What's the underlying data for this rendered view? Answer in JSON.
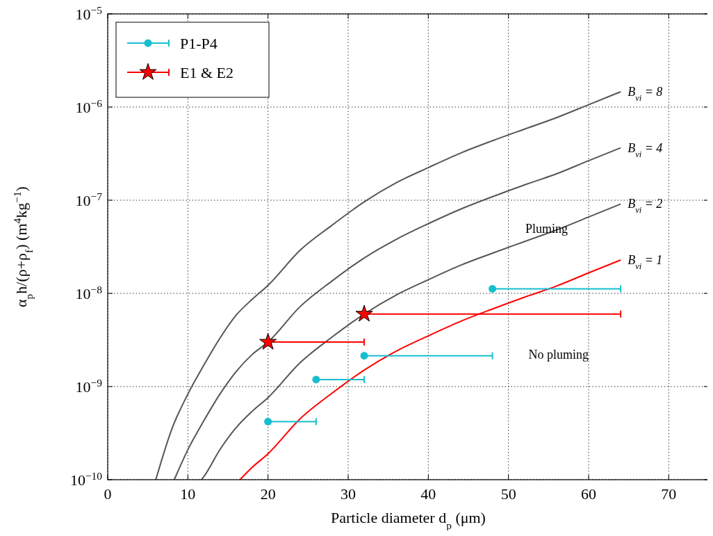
{
  "chart_data": {
    "type": "line",
    "xlabel": "Particle diameter d$_{p}$ (μm)",
    "ylabel": "α$_{p}$h/(ρ+ρ$_{f}$) (m$^{4}$kg$^{−1}$)",
    "xlim": [
      0,
      75
    ],
    "xticks": [
      0,
      10,
      20,
      30,
      40,
      50,
      60,
      70
    ],
    "ylim": [
      1e-10,
      1e-05
    ],
    "yticks": [
      {
        "value": 1e-10,
        "label": "10$^{−10}$"
      },
      {
        "value": 1e-09,
        "label": "10$^{−9}$"
      },
      {
        "value": 1e-08,
        "label": "10$^{−8}$"
      },
      {
        "value": 1e-07,
        "label": "10$^{−7}$"
      },
      {
        "value": 1e-06,
        "label": "10$^{−6}$"
      },
      {
        "value": 1e-05,
        "label": "10$^{−5}$"
      }
    ],
    "log": "y",
    "grid": true,
    "legend": "top left",
    "line_style": "solid",
    "series": [
      {
        "name": "B$_{vi}$ = 8",
        "color": "#555555",
        "x": [
          6,
          8,
          10,
          12,
          14,
          16,
          18,
          20,
          24,
          28,
          32,
          36,
          40,
          44,
          48,
          52,
          56,
          60,
          64
        ],
        "values": [
          1e-10,
          3.5e-10,
          8.3e-10,
          1.7e-09,
          3.3e-09,
          5.8e-09,
          8.6e-09,
          1.22e-08,
          2.9e-08,
          5.4e-08,
          9.6e-08,
          1.54e-07,
          2.24e-07,
          3.2e-07,
          4.35e-07,
          5.8e-07,
          7.7e-07,
          1.06e-06,
          1.46e-06
        ]
      },
      {
        "name": "B$_{vi}$ = 4",
        "color": "#555555",
        "x": [
          8.3,
          10,
          12,
          14,
          16,
          18,
          20,
          24,
          28,
          32,
          36,
          40,
          44,
          48,
          52,
          56,
          60,
          64
        ],
        "values": [
          1e-10,
          2.1e-10,
          4.3e-10,
          8.3e-10,
          1.44e-09,
          2.2e-09,
          3e-09,
          7.2e-09,
          1.36e-08,
          2.4e-08,
          3.8e-08,
          5.6e-08,
          8e-08,
          1.09e-07,
          1.46e-07,
          1.92e-07,
          2.66e-07,
          3.65e-07
        ]
      },
      {
        "name": "B$_{vi}$ = 2",
        "color": "#555555",
        "x": [
          11.7,
          12,
          14,
          16,
          18,
          20,
          24,
          28,
          32,
          36,
          40,
          44,
          48,
          52,
          56,
          60,
          64
        ],
        "values": [
          1e-10,
          1.08e-10,
          2.1e-10,
          3.6e-10,
          5.4e-10,
          7.6e-10,
          1.8e-09,
          3.4e-09,
          6e-09,
          9.6e-09,
          1.4e-08,
          2e-08,
          2.7e-08,
          3.6e-08,
          4.8e-08,
          6.6e-08,
          9.1e-08
        ]
      },
      {
        "name": "B$_{vi}$ = 1",
        "color": "#ff0000",
        "x": [
          16.5,
          18,
          20,
          24,
          28,
          32,
          36,
          40,
          44,
          48,
          52,
          56,
          60,
          64
        ],
        "values": [
          1e-10,
          1.35e-10,
          1.9e-10,
          4.5e-10,
          8.5e-10,
          1.5e-09,
          2.4e-09,
          3.5e-09,
          5e-09,
          6.8e-09,
          9.1e-09,
          1.2e-08,
          1.66e-08,
          2.28e-08
        ]
      },
      {
        "type": "scatter",
        "name": "P1-P4",
        "color": "#17becf",
        "marker": "circle",
        "x": [
          20,
          26,
          32,
          48
        ],
        "values": [
          4.2e-10,
          1.19e-09,
          2.14e-09,
          1.12e-08
        ],
        "xerrors": [
          [
            20,
            26
          ],
          [
            26,
            32
          ],
          [
            32,
            48
          ],
          [
            48,
            64
          ]
        ]
      },
      {
        "type": "scatter",
        "name": "E1 & E2",
        "color": "#ff0000",
        "marker": "star",
        "x": [
          20,
          32
        ],
        "values": [
          3e-09,
          6e-09
        ],
        "xerrors": [
          [
            20,
            32
          ],
          [
            32,
            64
          ]
        ]
      }
    ],
    "annotations": [
      "Pluming",
      "No pluming"
    ]
  }
}
